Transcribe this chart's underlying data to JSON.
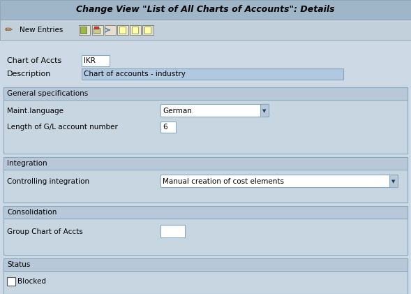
{
  "title": "Change View \"List of All Charts of Accounts\": Details",
  "bg_color": "#cdd9e5",
  "title_bg": "#9fb5c8",
  "toolbar_bg": "#c2d0dc",
  "section_bg": "#c8d6e2",
  "section_header_bg": "#b8c8d8",
  "white": "#ffffff",
  "desc_selected_bg": "#b0c8e0",
  "field_border": "#8aaabf",
  "section_border": "#8aaabf",
  "text_color": "#000000",
  "title_text_color": "#000000",
  "chart_of_accts_label": "Chart of Accts",
  "chart_of_accts_value": "IKR",
  "description_label": "Description",
  "description_value": "Chart of accounts - industry",
  "section1_title": "General specifications",
  "maint_lang_label": "Maint.language",
  "maint_lang_value": "German",
  "gl_label": "Length of G/L account number",
  "gl_value": "6",
  "section2_title": "Integration",
  "controlling_label": "Controlling integration",
  "controlling_value": "Manual creation of cost elements",
  "section3_title": "Consolidation",
  "group_chart_label": "Group Chart of Accts",
  "section4_title": "Status",
  "blocked_label": "Blocked",
  "new_entries_label": "New Entries",
  "dropdown_arrow_color": "#1a3a6a"
}
